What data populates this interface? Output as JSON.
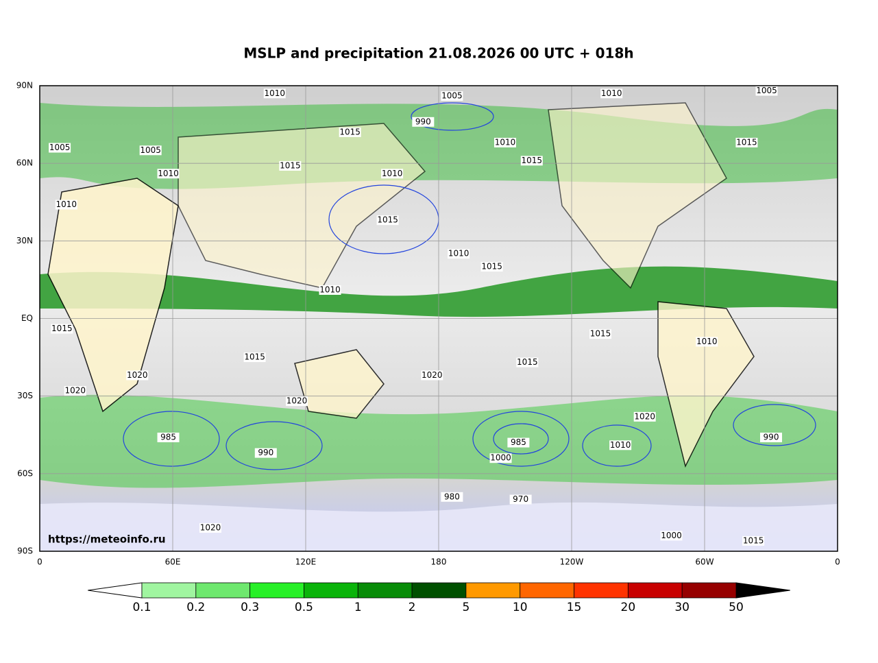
{
  "title": "MSLP and precipitation 21.08.2026 00 UTC + 018h",
  "credit": "https://meteoinfo.ru",
  "lonlim": [
    0,
    360
  ],
  "latlim": [
    -90,
    90
  ],
  "lon_ticks": [
    0,
    {
      "value": 60,
      "label": "60E"
    },
    {
      "value": 120,
      "label": "120E"
    },
    180,
    {
      "value": 240,
      "label": "120W"
    },
    {
      "value": 300,
      "label": "60W"
    },
    {
      "value": 360,
      "label": "0"
    }
  ],
  "lat_ticks": [
    {
      "value": 90,
      "label": "90N"
    },
    {
      "value": 60,
      "label": "60N"
    },
    {
      "value": 30,
      "label": "30N"
    },
    {
      "value": 0,
      "label": "EQ"
    },
    {
      "value": -30,
      "label": "30S"
    },
    {
      "value": -60,
      "label": "60S"
    },
    {
      "value": -90,
      "label": "90S"
    }
  ],
  "grid": true,
  "colorbar": {
    "levels": [
      0.1,
      0.2,
      0.3,
      0.5,
      1,
      2,
      5,
      10,
      15,
      20,
      30,
      50
    ],
    "colors": [
      "#a0f5a0",
      "#6ee86e",
      "#28f028",
      "#0ab40a",
      "#088c08",
      "#005000",
      "#ff9900",
      "#ff6600",
      "#ff3300",
      "#c80000",
      "#960000"
    ],
    "under_color": "#ffffff",
    "over_color": "#000000"
  },
  "isobar_labels": [
    {
      "text": "1010",
      "lon": 106,
      "lat": 87
    },
    {
      "text": "1005",
      "lon": 186,
      "lat": 86
    },
    {
      "text": "1010",
      "lon": 258,
      "lat": 87
    },
    {
      "text": "1005",
      "lon": 328,
      "lat": 88
    },
    {
      "text": "990",
      "lon": 173,
      "lat": 76
    },
    {
      "text": "1015",
      "lon": 140,
      "lat": 72
    },
    {
      "text": "1005",
      "lon": 9,
      "lat": 66
    },
    {
      "text": "1005",
      "lon": 50,
      "lat": 65
    },
    {
      "text": "1010",
      "lon": 58,
      "lat": 56
    },
    {
      "text": "1015",
      "lon": 113,
      "lat": 59
    },
    {
      "text": "1010",
      "lon": 159,
      "lat": 56
    },
    {
      "text": "1015",
      "lon": 222,
      "lat": 61
    },
    {
      "text": "1010",
      "lon": 210,
      "lat": 68
    },
    {
      "text": "1015",
      "lon": 319,
      "lat": 68
    },
    {
      "text": "1010",
      "lon": 12,
      "lat": 44
    },
    {
      "text": "1015",
      "lon": 157,
      "lat": 38
    },
    {
      "text": "1010",
      "lon": 189,
      "lat": 25
    },
    {
      "text": "1015",
      "lon": 204,
      "lat": 20
    },
    {
      "text": "1010",
      "lon": 131,
      "lat": 11
    },
    {
      "text": "1015",
      "lon": 10,
      "lat": -4
    },
    {
      "text": "1015",
      "lon": 253,
      "lat": -6
    },
    {
      "text": "1010",
      "lon": 301,
      "lat": -9
    },
    {
      "text": "1015",
      "lon": 97,
      "lat": -15
    },
    {
      "text": "1015",
      "lon": 220,
      "lat": -17
    },
    {
      "text": "1020",
      "lon": 44,
      "lat": -22
    },
    {
      "text": "1020",
      "lon": 177,
      "lat": -22
    },
    {
      "text": "1020",
      "lon": 16,
      "lat": -28
    },
    {
      "text": "1020",
      "lon": 116,
      "lat": -32
    },
    {
      "text": "1020",
      "lon": 273,
      "lat": -38
    },
    {
      "text": "985",
      "lon": 58,
      "lat": -46
    },
    {
      "text": "990",
      "lon": 102,
      "lat": -52
    },
    {
      "text": "985",
      "lon": 216,
      "lat": -48
    },
    {
      "text": "1000",
      "lon": 208,
      "lat": -54
    },
    {
      "text": "990",
      "lon": 330,
      "lat": -46
    },
    {
      "text": "1010",
      "lon": 262,
      "lat": -49
    },
    {
      "text": "980",
      "lon": 186,
      "lat": -69
    },
    {
      "text": "970",
      "lon": 217,
      "lat": -70
    },
    {
      "text": "1020",
      "lon": 77,
      "lat": -81
    },
    {
      "text": "1000",
      "lon": 285,
      "lat": -84
    },
    {
      "text": "1015",
      "lon": 322,
      "lat": -86
    }
  ]
}
